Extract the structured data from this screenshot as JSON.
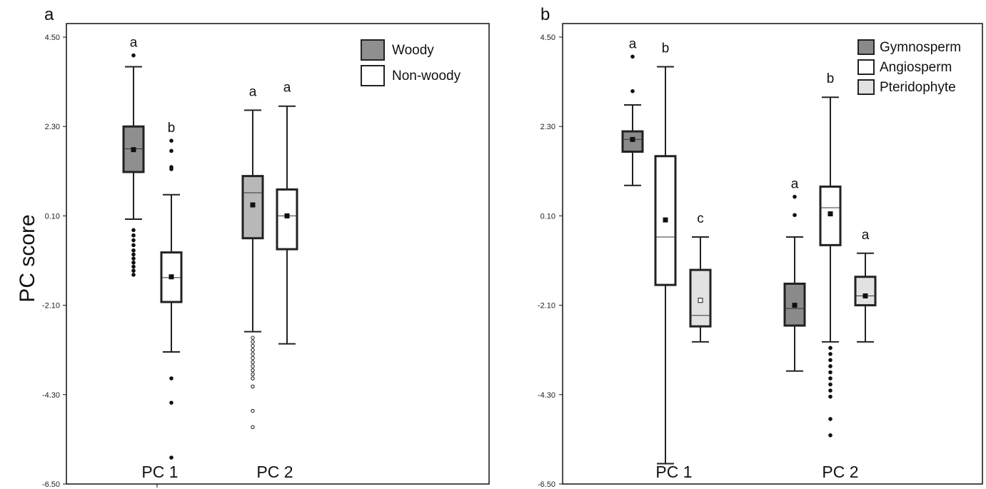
{
  "ylabel": "PC score",
  "chart_data": [
    {
      "type": "box",
      "panel": "a",
      "categories": [
        "PC 1",
        "PC 2"
      ],
      "ylim": [
        -6.5,
        4.5
      ],
      "yticks": [
        "4.50",
        "2.30",
        "0.10",
        "-2.10",
        "-4.30",
        "-6.50"
      ],
      "legend": {
        "placement": "top-right",
        "entries": [
          {
            "name": "Woody",
            "color": "#8f8f8f"
          },
          {
            "name": "Non-woody",
            "color": "#ffffff"
          }
        ]
      },
      "boxes": [
        {
          "category": "PC 1",
          "series": "Woody",
          "fill": "#8f8f8f",
          "whisker_low": 0.02,
          "q1": 1.18,
          "median": 1.75,
          "q3": 2.3,
          "whisker_high": 3.77,
          "mean": 1.73,
          "outliers": [
            4.05,
            -0.25,
            -0.38,
            -0.5,
            -0.62,
            -0.75,
            -0.85,
            -0.95,
            -1.05,
            -1.15,
            -1.25,
            -1.35
          ],
          "label": "a"
        },
        {
          "category": "PC 1",
          "series": "Non-woody",
          "fill": "#ffffff",
          "whisker_low": -3.25,
          "q1": -2.02,
          "median": -1.42,
          "q3": -0.8,
          "whisker_high": 0.62,
          "mean": -1.4,
          "outliers": [
            1.95,
            1.7,
            1.3,
            1.25,
            -3.9,
            -4.5,
            -5.85
          ],
          "label": "b"
        },
        {
          "category": "PC 2",
          "series": "Woody",
          "fill": "#b8b8b8",
          "whisker_low": -2.75,
          "q1": -0.45,
          "median": 0.67,
          "q3": 1.08,
          "whisker_high": 2.7,
          "mean": 0.37,
          "outliers": [
            -2.9,
            -3.0,
            -3.1,
            -3.2,
            -3.3,
            -3.4,
            -3.5,
            -3.6,
            -3.7,
            -3.8,
            -3.9,
            -4.1,
            -4.7,
            -5.1
          ],
          "label": "a"
        },
        {
          "category": "PC 2",
          "series": "Non-woody",
          "fill": "#ffffff",
          "whisker_low": -3.05,
          "q1": -0.72,
          "median": 0.1,
          "q3": 0.75,
          "whisker_high": 2.8,
          "mean": 0.1,
          "outliers": [],
          "label": "a"
        }
      ]
    },
    {
      "type": "box",
      "panel": "b",
      "categories": [
        "PC 1",
        "PC 2"
      ],
      "ylim": [
        -6.5,
        4.5
      ],
      "yticks": [
        "4.50",
        "2.30",
        "0.10",
        "-2.10",
        "-4.30",
        "-6.50"
      ],
      "legend": {
        "placement": "top-right",
        "entries": [
          {
            "name": "Gymnosperm",
            "color": "#8a8a8a"
          },
          {
            "name": "Angiosperm",
            "color": "#ffffff"
          },
          {
            "name": "Pteridophyte",
            "color": "#e2e2e2"
          }
        ]
      },
      "boxes": [
        {
          "category": "PC 1",
          "series": "Gymnosperm",
          "fill": "#8a8a8a",
          "whisker_low": 0.85,
          "q1": 1.68,
          "median": 1.98,
          "q3": 2.18,
          "whisker_high": 2.83,
          "mean": 1.98,
          "outliers": [
            4.02,
            3.17
          ],
          "label": "a"
        },
        {
          "category": "PC 1",
          "series": "Angiosperm",
          "fill": "#ffffff",
          "whisker_low": -6.0,
          "q1": -1.6,
          "median": -0.42,
          "q3": 1.57,
          "whisker_high": 3.77,
          "mean": 0.0,
          "outliers": [],
          "label": "b"
        },
        {
          "category": "PC 1",
          "series": "Pteridophyte",
          "fill": "#e2e2e2",
          "whisker_low": -3.0,
          "q1": -2.62,
          "median": -2.35,
          "q3": -1.23,
          "whisker_high": -0.42,
          "mean": -1.98,
          "outliers": [],
          "label": "c"
        },
        {
          "category": "PC 2",
          "series": "Gymnosperm",
          "fill": "#8a8a8a",
          "whisker_low": -3.72,
          "q1": -2.6,
          "median": -2.18,
          "q3": -1.57,
          "whisker_high": -0.42,
          "mean": -2.1,
          "outliers": [
            0.57,
            0.12
          ],
          "label": "a"
        },
        {
          "category": "PC 2",
          "series": "Angiosperm",
          "fill": "#ffffff",
          "whisker_low": -3.0,
          "q1": -0.62,
          "median": 0.3,
          "q3": 0.82,
          "whisker_high": 3.02,
          "mean": 0.15,
          "outliers": [
            -3.15,
            -3.3,
            -3.45,
            -3.6,
            -3.75,
            -3.9,
            -4.05,
            -4.2,
            -4.35,
            -4.9,
            -5.3
          ],
          "label": "b"
        },
        {
          "category": "PC 2",
          "series": "Pteridophyte",
          "fill": "#e2e2e2",
          "whisker_low": -3.0,
          "q1": -2.1,
          "median": -1.87,
          "q3": -1.4,
          "whisker_high": -0.82,
          "mean": -1.87,
          "outliers": [],
          "label": "a"
        }
      ]
    }
  ]
}
